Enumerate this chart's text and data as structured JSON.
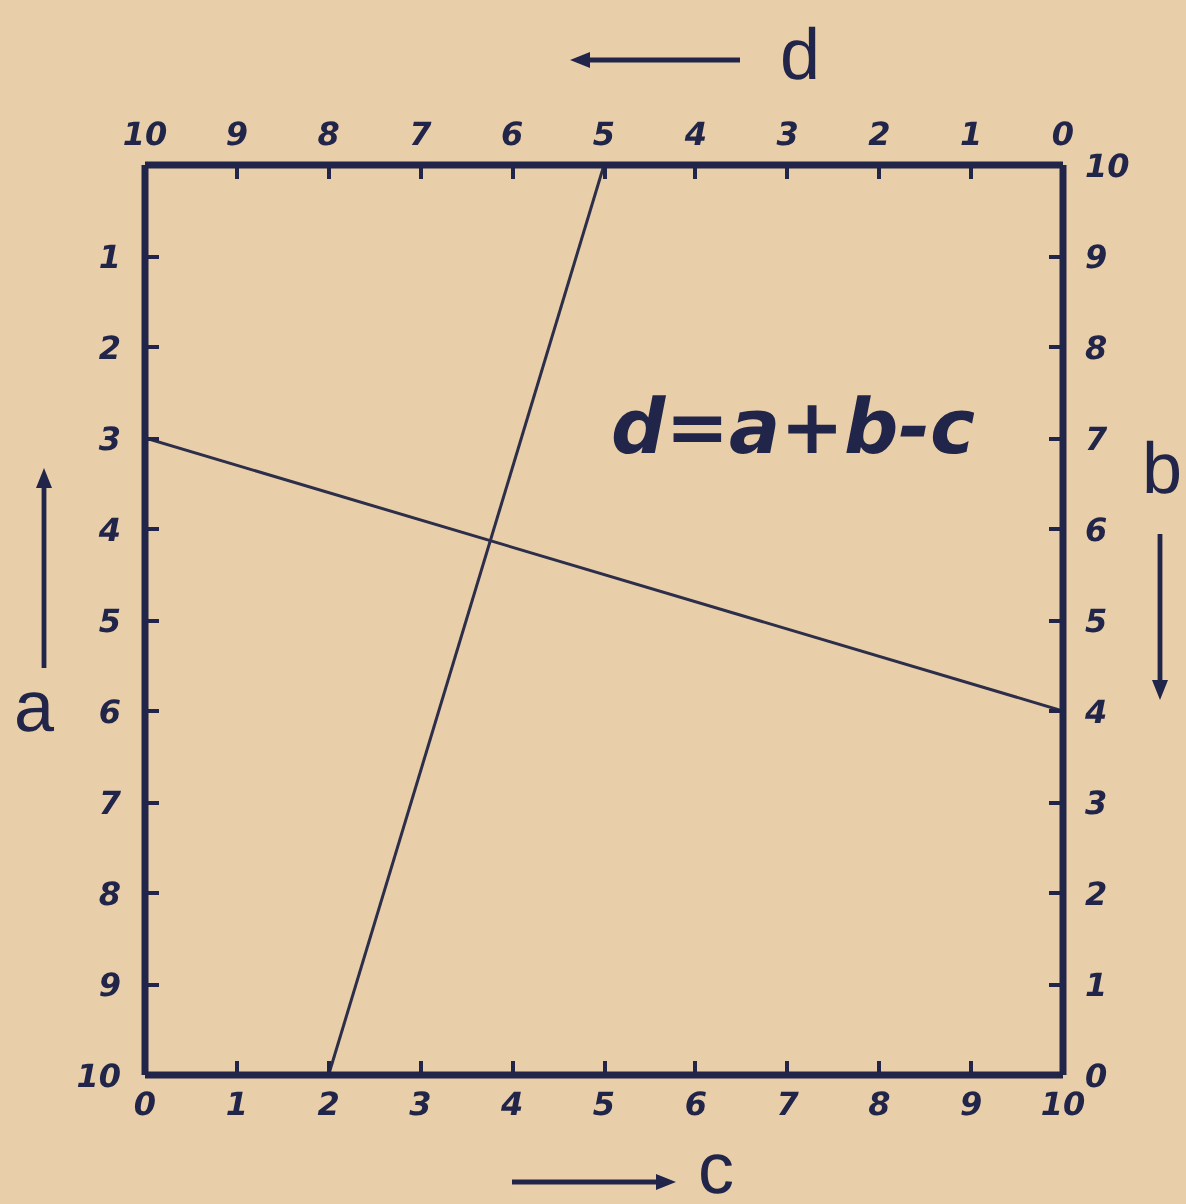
{
  "chart_data": {
    "type": "line",
    "xlabel": "c",
    "ylabel": "a",
    "y2label": "b",
    "x2label": "d",
    "annotations": [
      "d=a+b-c"
    ],
    "xlim": [
      0,
      10
    ],
    "xticks": [
      0,
      1,
      2,
      3,
      4,
      5,
      6,
      7,
      8,
      9,
      10
    ],
    "ylim": [
      10,
      0
    ],
    "yticks": [
      1,
      2,
      3,
      4,
      5,
      6,
      7,
      8,
      9,
      10
    ],
    "y2lim": [
      0,
      10
    ],
    "y2ticks": [
      0,
      1,
      2,
      3,
      4,
      5,
      6,
      7,
      8,
      9,
      10
    ],
    "x2lim": [
      10,
      0
    ],
    "x2ticks": [
      10,
      9,
      8,
      7,
      6,
      5,
      4,
      3,
      2,
      1,
      0
    ],
    "grid": false,
    "series": [
      {
        "color": "#2c2e4a",
        "x": [
          0,
          10
        ],
        "values": [
          3,
          6
        ]
      },
      {
        "color": "#2c2e4a",
        "x": [
          2,
          5
        ],
        "values": [
          10,
          0
        ]
      }
    ]
  }
}
